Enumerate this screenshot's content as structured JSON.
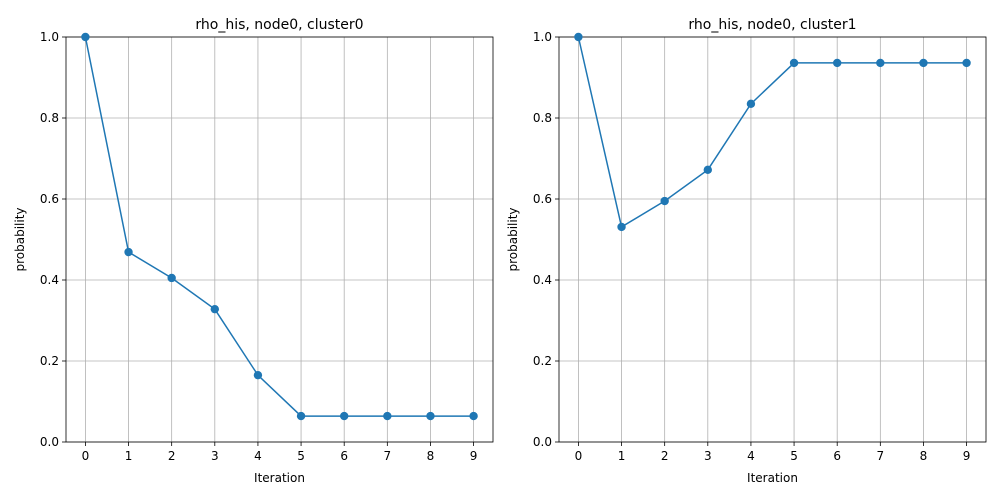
{
  "chart_data": [
    {
      "type": "line",
      "title": "rho_his, node0, cluster0",
      "xlabel": "Iteration",
      "ylabel": "probability",
      "x": [
        0,
        1,
        2,
        3,
        4,
        5,
        6,
        7,
        8,
        9
      ],
      "xticks": [
        "0",
        "1",
        "2",
        "3",
        "4",
        "5",
        "6",
        "7",
        "8",
        "9"
      ],
      "yticks": [
        "0.0",
        "0.2",
        "0.4",
        "0.6",
        "0.8",
        "1.0"
      ],
      "ylim": [
        0,
        1
      ],
      "xlim": [
        -0.45,
        9.45
      ],
      "grid": true,
      "marker": "circle",
      "color": "#1f77b4",
      "values": [
        1.0,
        0.469,
        0.405,
        0.328,
        0.165,
        0.064,
        0.064,
        0.064,
        0.064,
        0.064
      ]
    },
    {
      "type": "line",
      "title": "rho_his, node0, cluster1",
      "xlabel": "Iteration",
      "ylabel": "probability",
      "x": [
        0,
        1,
        2,
        3,
        4,
        5,
        6,
        7,
        8,
        9
      ],
      "xticks": [
        "0",
        "1",
        "2",
        "3",
        "4",
        "5",
        "6",
        "7",
        "8",
        "9"
      ],
      "yticks": [
        "0.0",
        "0.2",
        "0.4",
        "0.6",
        "0.8",
        "1.0"
      ],
      "ylim": [
        0,
        1
      ],
      "xlim": [
        -0.45,
        9.45
      ],
      "grid": true,
      "marker": "circle",
      "color": "#1f77b4",
      "values": [
        1.0,
        0.531,
        0.595,
        0.672,
        0.835,
        0.936,
        0.936,
        0.936,
        0.936,
        0.936
      ]
    }
  ]
}
